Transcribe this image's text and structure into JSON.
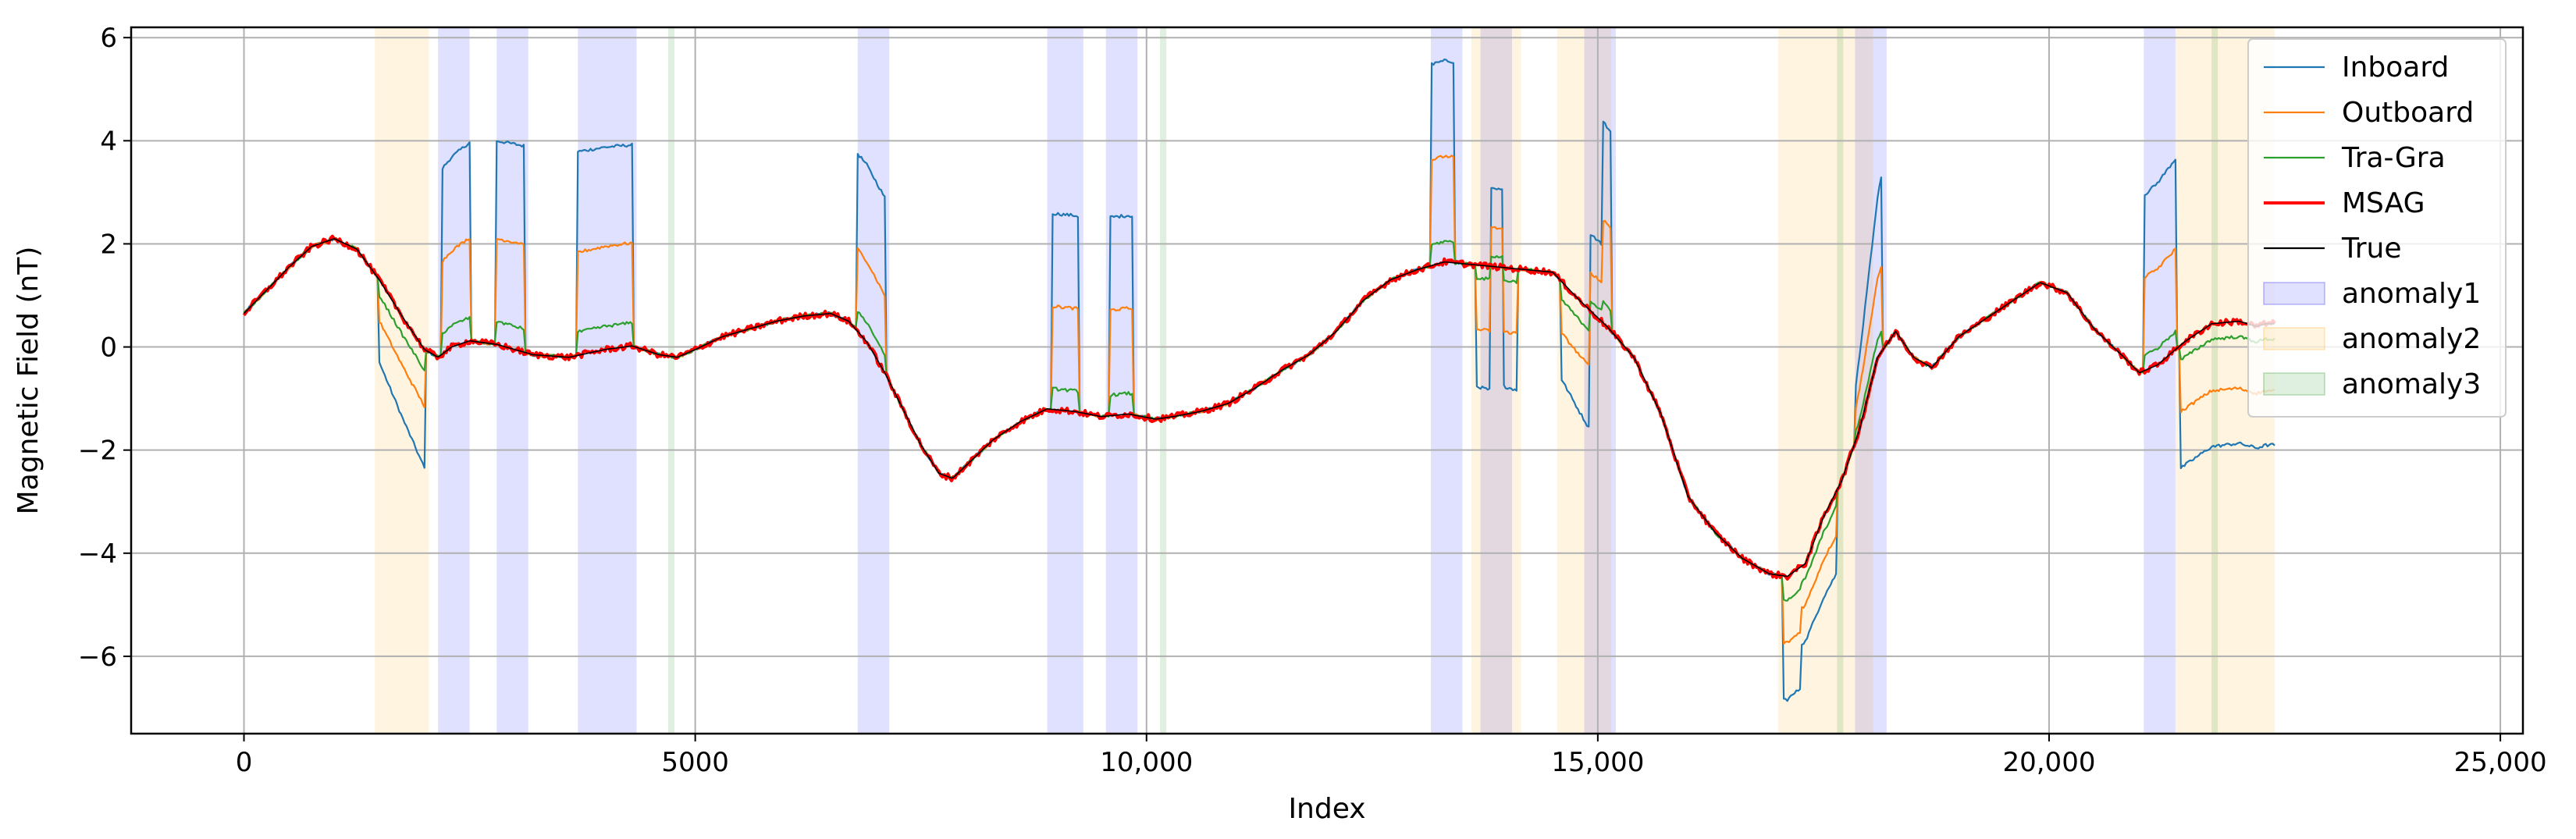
{
  "chart_data": {
    "type": "line",
    "title": "",
    "xlabel": "Index",
    "ylabel": "Magnetic Field (nT)",
    "xlim": [
      -1250,
      25250
    ],
    "ylim": [
      -7.5,
      6.2
    ],
    "grid": true,
    "legend_position": "top-right",
    "x_ticks": [
      0,
      5000,
      10000,
      15000,
      20000,
      25000
    ],
    "x_tick_labels": [
      "0",
      "5000",
      "10,000",
      "15,000",
      "20,000",
      "25,000"
    ],
    "y_ticks": [
      -6,
      -4,
      -2,
      0,
      2,
      4,
      6
    ],
    "y_tick_labels": [
      "−6",
      "−4",
      "−2",
      "0",
      "2",
      "4",
      "6"
    ],
    "true_curve": {
      "x": [
        0,
        250,
        500,
        750,
        1000,
        1250,
        1500,
        1750,
        2000,
        2150,
        2300,
        2500,
        2800,
        3200,
        3600,
        4000,
        4300,
        4600,
        4800,
        5000,
        5300,
        5600,
        5900,
        6200,
        6500,
        6700,
        6900,
        7100,
        7300,
        7500,
        7700,
        7850,
        8000,
        8300,
        8600,
        8900,
        9200,
        9500,
        9800,
        10100,
        10300,
        10600,
        10900,
        11200,
        11500,
        11800,
        12100,
        12400,
        12700,
        13000,
        13300,
        13600,
        13900,
        14200,
        14500,
        14800,
        15100,
        15400,
        15700,
        16000,
        16300,
        16600,
        16900,
        17100,
        17300,
        17500,
        17700,
        17900,
        18100,
        18300,
        18500,
        18700,
        19000,
        19300,
        19600,
        19900,
        20200,
        20500,
        20800,
        21000,
        21200,
        21500,
        21800,
        22100,
        22300,
        22400
      ],
      "y": [
        0.65,
        1.1,
        1.55,
        1.95,
        2.1,
        1.9,
        1.3,
        0.6,
        -0.05,
        -0.2,
        0.0,
        0.12,
        0.05,
        -0.15,
        -0.2,
        -0.05,
        0.02,
        -0.15,
        -0.2,
        -0.05,
        0.2,
        0.35,
        0.5,
        0.6,
        0.65,
        0.5,
        0.1,
        -0.5,
        -1.2,
        -1.9,
        -2.45,
        -2.55,
        -2.3,
        -1.8,
        -1.45,
        -1.2,
        -1.25,
        -1.35,
        -1.3,
        -1.4,
        -1.35,
        -1.25,
        -1.1,
        -0.8,
        -0.45,
        -0.15,
        0.3,
        0.9,
        1.3,
        1.5,
        1.65,
        1.6,
        1.55,
        1.5,
        1.45,
        0.9,
        0.4,
        -0.2,
        -1.3,
        -2.9,
        -3.6,
        -4.1,
        -4.4,
        -4.45,
        -4.2,
        -3.3,
        -2.6,
        -1.6,
        -0.2,
        0.3,
        -0.2,
        -0.4,
        0.2,
        0.55,
        0.9,
        1.25,
        1.05,
        0.35,
        -0.15,
        -0.5,
        -0.35,
        0.1,
        0.45,
        0.5,
        0.4,
        0.45
      ]
    },
    "series": [
      {
        "name": "Inboard",
        "color": "#1f77b4",
        "offsets": [
          {
            "x0": 1500,
            "x1": 2000,
            "d0": -1.6,
            "d1": -2.3
          },
          {
            "x0": 2200,
            "x1": 2500,
            "d0": 3.6,
            "d1": 3.85
          },
          {
            "x0": 2800,
            "x1": 3100,
            "d0": 3.95,
            "d1": 4.0
          },
          {
            "x0": 3700,
            "x1": 4300,
            "d0": 3.95,
            "d1": 3.9
          },
          {
            "x0": 6800,
            "x1": 7100,
            "d0": 3.45,
            "d1": 3.4
          },
          {
            "x0": 8950,
            "x1": 9250,
            "d0": 3.8,
            "d1": 3.8
          },
          {
            "x0": 9600,
            "x1": 9850,
            "d0": 3.85,
            "d1": 3.85
          },
          {
            "x0": 13150,
            "x1": 13400,
            "d0": 3.9,
            "d1": 3.9
          },
          {
            "x0": 13650,
            "x1": 13800,
            "d0": -2.35,
            "d1": -2.4
          },
          {
            "x0": 13800,
            "x1": 13950,
            "d0": 1.5,
            "d1": 1.5
          },
          {
            "x0": 13950,
            "x1": 14100,
            "d0": -2.3,
            "d1": -2.35
          },
          {
            "x0": 14600,
            "x1": 14900,
            "d0": -1.9,
            "d1": -2.3
          },
          {
            "x0": 14900,
            "x1": 15050,
            "d0": 1.5,
            "d1": 1.5
          },
          {
            "x0": 15050,
            "x1": 15150,
            "d0": 3.9,
            "d1": 3.85
          },
          {
            "x0": 17050,
            "x1": 17250,
            "d0": -2.4,
            "d1": -2.35
          },
          {
            "x0": 17250,
            "x1": 17650,
            "d0": -1.5,
            "d1": -1.6
          },
          {
            "x0": 17850,
            "x1": 18150,
            "d0": 1.0,
            "d1": 3.5
          },
          {
            "x0": 21050,
            "x1": 21400,
            "d0": 3.4,
            "d1": 3.7
          },
          {
            "x0": 21450,
            "x1": 22500,
            "d0": -2.4,
            "d1": -2.35
          }
        ]
      },
      {
        "name": "Outboard",
        "color": "#ff7f0e",
        "offsets": [
          {
            "x0": 1500,
            "x1": 2000,
            "d0": -0.8,
            "d1": -1.1
          },
          {
            "x0": 2200,
            "x1": 2500,
            "d0": 1.8,
            "d1": 2.0
          },
          {
            "x0": 2800,
            "x1": 3100,
            "d0": 2.05,
            "d1": 2.1
          },
          {
            "x0": 3700,
            "x1": 4300,
            "d0": 2.0,
            "d1": 2.0
          },
          {
            "x0": 6800,
            "x1": 7100,
            "d0": 1.6,
            "d1": 1.5
          },
          {
            "x0": 8950,
            "x1": 9250,
            "d0": 2.0,
            "d1": 2.0
          },
          {
            "x0": 9600,
            "x1": 9850,
            "d0": 2.05,
            "d1": 2.05
          },
          {
            "x0": 13150,
            "x1": 13400,
            "d0": 2.05,
            "d1": 2.05
          },
          {
            "x0": 13650,
            "x1": 13800,
            "d0": -1.25,
            "d1": -1.25
          },
          {
            "x0": 13800,
            "x1": 13950,
            "d0": 0.75,
            "d1": 0.75
          },
          {
            "x0": 13950,
            "x1": 14100,
            "d0": -1.25,
            "d1": -1.25
          },
          {
            "x0": 14600,
            "x1": 14900,
            "d0": -1.0,
            "d1": -1.1
          },
          {
            "x0": 14900,
            "x1": 15050,
            "d0": 0.75,
            "d1": 0.75
          },
          {
            "x0": 15050,
            "x1": 15150,
            "d0": 2.0,
            "d1": 2.0
          },
          {
            "x0": 17050,
            "x1": 17250,
            "d0": -1.3,
            "d1": -1.25
          },
          {
            "x0": 17250,
            "x1": 17650,
            "d0": -0.8,
            "d1": -0.85
          },
          {
            "x0": 17850,
            "x1": 18150,
            "d0": 0.6,
            "d1": 1.7
          },
          {
            "x0": 21050,
            "x1": 21400,
            "d0": 1.8,
            "d1": 1.95
          },
          {
            "x0": 21450,
            "x1": 22500,
            "d0": -1.3,
            "d1": -1.3
          }
        ]
      },
      {
        "name": "Tra-Gra",
        "color": "#2ca02c",
        "offsets": [
          {
            "x0": 1500,
            "x1": 2000,
            "d0": -0.3,
            "d1": -0.4
          },
          {
            "x0": 2200,
            "x1": 2500,
            "d0": 0.4,
            "d1": 0.45
          },
          {
            "x0": 2800,
            "x1": 3100,
            "d0": 0.45,
            "d1": 0.45
          },
          {
            "x0": 3700,
            "x1": 4300,
            "d0": 0.45,
            "d1": 0.45
          },
          {
            "x0": 6800,
            "x1": 7100,
            "d0": 0.4,
            "d1": 0.35
          },
          {
            "x0": 8950,
            "x1": 9250,
            "d0": 0.4,
            "d1": 0.4
          },
          {
            "x0": 9600,
            "x1": 9850,
            "d0": 0.4,
            "d1": 0.4
          },
          {
            "x0": 13150,
            "x1": 13400,
            "d0": 0.4,
            "d1": 0.4
          },
          {
            "x0": 13650,
            "x1": 13800,
            "d0": -0.25,
            "d1": -0.25
          },
          {
            "x0": 13800,
            "x1": 13950,
            "d0": 0.2,
            "d1": 0.2
          },
          {
            "x0": 13950,
            "x1": 14100,
            "d0": -0.25,
            "d1": -0.25
          },
          {
            "x0": 14600,
            "x1": 14900,
            "d0": -0.35,
            "d1": -0.4
          },
          {
            "x0": 14900,
            "x1": 15050,
            "d0": 0.2,
            "d1": 0.2
          },
          {
            "x0": 15050,
            "x1": 15150,
            "d0": 0.4,
            "d1": 0.4
          },
          {
            "x0": 17050,
            "x1": 17250,
            "d0": -0.45,
            "d1": -0.45
          },
          {
            "x0": 17250,
            "x1": 17650,
            "d0": -0.3,
            "d1": -0.3
          },
          {
            "x0": 17850,
            "x1": 18150,
            "d0": 0.15,
            "d1": 0.4
          },
          {
            "x0": 21050,
            "x1": 21400,
            "d0": 0.3,
            "d1": 0.35
          },
          {
            "x0": 21450,
            "x1": 22500,
            "d0": -0.3,
            "d1": -0.3
          }
        ]
      },
      {
        "name": "MSAG",
        "color": "#ff0000"
      },
      {
        "name": "True",
        "color": "#000000"
      }
    ],
    "anomaly_regions": [
      {
        "type": "anomaly1",
        "x0": 2150,
        "x1": 2500
      },
      {
        "type": "anomaly1",
        "x0": 2800,
        "x1": 3150
      },
      {
        "type": "anomaly1",
        "x0": 3700,
        "x1": 4350
      },
      {
        "type": "anomaly1",
        "x0": 6800,
        "x1": 7150
      },
      {
        "type": "anomaly1",
        "x0": 8900,
        "x1": 9300
      },
      {
        "type": "anomaly1",
        "x0": 9550,
        "x1": 9900
      },
      {
        "type": "anomaly1",
        "x0": 13150,
        "x1": 13500
      },
      {
        "type": "anomaly1",
        "x0": 13700,
        "x1": 14050
      },
      {
        "type": "anomaly1",
        "x0": 14850,
        "x1": 15200
      },
      {
        "type": "anomaly1",
        "x0": 17850,
        "x1": 18200
      },
      {
        "type": "anomaly1",
        "x0": 21050,
        "x1": 21400
      },
      {
        "type": "anomaly2",
        "x0": 1450,
        "x1": 2050
      },
      {
        "type": "anomaly2",
        "x0": 13600,
        "x1": 14150
      },
      {
        "type": "anomaly2",
        "x0": 14550,
        "x1": 15150
      },
      {
        "type": "anomaly2",
        "x0": 17000,
        "x1": 18050
      },
      {
        "type": "anomaly2",
        "x0": 21400,
        "x1": 22500
      },
      {
        "type": "anomaly3",
        "x0": 4700,
        "x1": 4770
      },
      {
        "type": "anomaly3",
        "x0": 10150,
        "x1": 10220
      },
      {
        "type": "anomaly3",
        "x0": 17650,
        "x1": 17720
      },
      {
        "type": "anomaly3",
        "x0": 21800,
        "x1": 21870
      }
    ],
    "legend": [
      {
        "label": "Inboard",
        "kind": "line",
        "color": "#1f77b4"
      },
      {
        "label": "Outboard",
        "kind": "line",
        "color": "#ff7f0e"
      },
      {
        "label": "Tra-Gra",
        "kind": "line",
        "color": "#2ca02c"
      },
      {
        "label": "MSAG",
        "kind": "line-thick",
        "color": "#ff0000"
      },
      {
        "label": "True",
        "kind": "line",
        "color": "#000000"
      },
      {
        "label": "anomaly1",
        "kind": "patch",
        "color": "#0000ff"
      },
      {
        "label": "anomaly2",
        "kind": "patch",
        "color": "#ffa500"
      },
      {
        "label": "anomaly3",
        "kind": "patch",
        "color": "#008000"
      }
    ],
    "region_colors": {
      "anomaly1": "#0000ff",
      "anomaly2": "#ffa500",
      "anomaly3": "#008000"
    }
  }
}
